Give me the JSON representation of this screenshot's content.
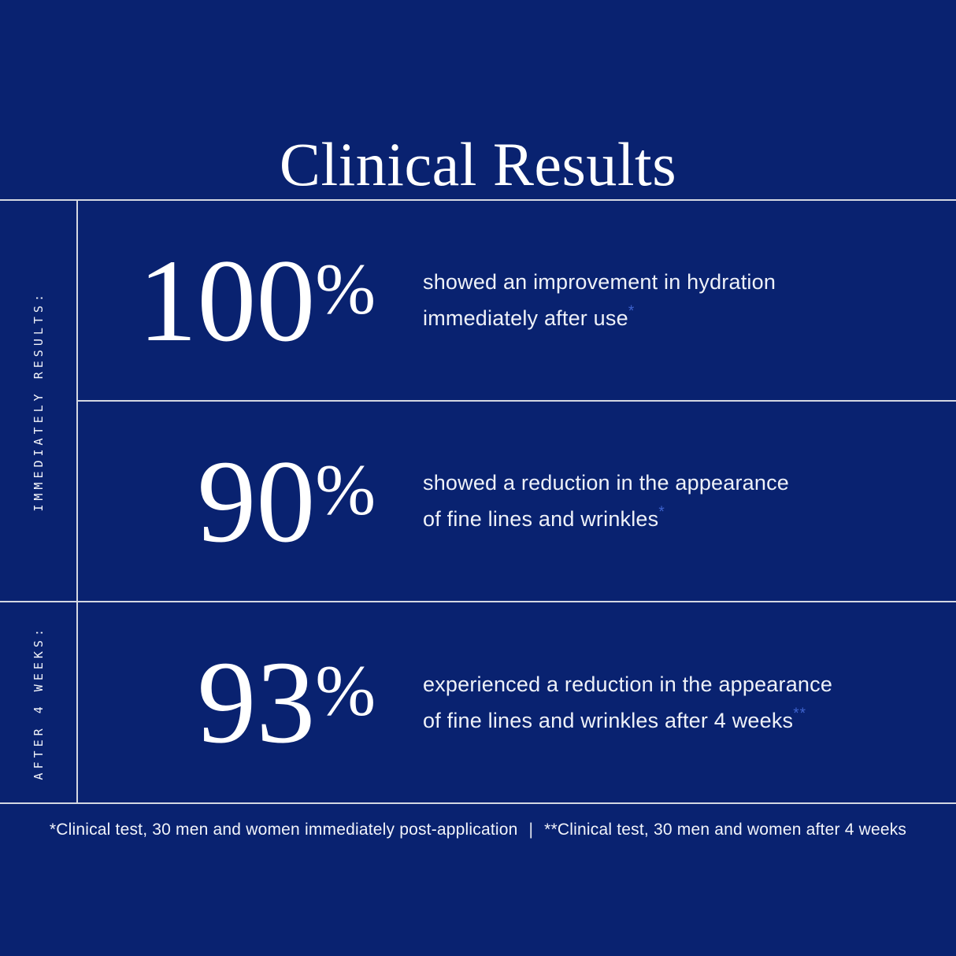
{
  "page": {
    "background_color": "#092270",
    "rule_color": "#d4d8e2",
    "text_color": "#ffffff",
    "asterisk_accent_color": "#3e63ce"
  },
  "title": "Clinical Results",
  "sections": [
    {
      "label": "IMMEDIATELY RESULTS:",
      "stats": [
        {
          "value": "100",
          "unit": "%",
          "desc_line1": "showed an improvement in hydration",
          "desc_line2": "immediately after use",
          "footnote_marker": "*"
        },
        {
          "value": "90",
          "unit": "%",
          "desc_line1": "showed a reduction in the appearance",
          "desc_line2": "of fine lines and wrinkles",
          "footnote_marker": "*"
        }
      ]
    },
    {
      "label": "AFTER 4 WEEKS:",
      "stats": [
        {
          "value": "93",
          "unit": "%",
          "desc_line1": "experienced a reduction in the appearance",
          "desc_line2": "of fine lines and wrinkles after 4 weeks",
          "footnote_marker": "**"
        }
      ]
    }
  ],
  "footnote": {
    "note_immediate": "*Clinical test, 30 men and women immediately post-application",
    "separator": "|",
    "note_after": "**Clinical test, 30 men and women after 4 weeks"
  }
}
